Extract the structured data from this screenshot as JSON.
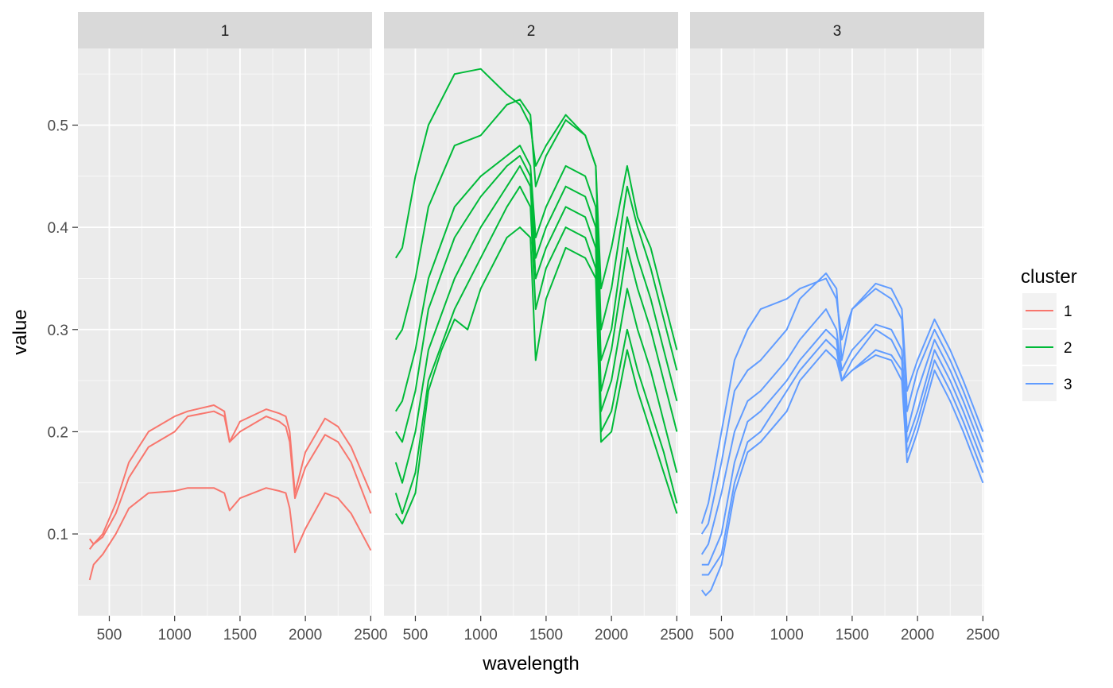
{
  "chart_data": {
    "type": "line",
    "facet_by": "cluster",
    "panels": [
      {
        "label": "1",
        "color": "#F8766D",
        "series": [
          {
            "x": [
              350,
              380,
              450,
              550,
              650,
              800,
              1000,
              1100,
              1300,
              1380,
              1420,
              1500,
              1700,
              1800,
              1850,
              1880,
              1920,
              2000,
              2150,
              2250,
              2350,
              2500
            ],
            "y": [
              0.085,
              0.09,
              0.1,
              0.13,
              0.17,
              0.2,
              0.215,
              0.22,
              0.226,
              0.22,
              0.19,
              0.21,
              0.222,
              0.218,
              0.215,
              0.2,
              0.14,
              0.18,
              0.213,
              0.205,
              0.185,
              0.14
            ]
          },
          {
            "x": [
              350,
              380,
              450,
              550,
              650,
              800,
              1000,
              1100,
              1300,
              1380,
              1420,
              1500,
              1700,
              1800,
              1850,
              1880,
              1920,
              2000,
              2150,
              2250,
              2350,
              2500
            ],
            "y": [
              0.095,
              0.09,
              0.097,
              0.12,
              0.155,
              0.185,
              0.2,
              0.215,
              0.22,
              0.215,
              0.19,
              0.2,
              0.215,
              0.21,
              0.205,
              0.19,
              0.135,
              0.165,
              0.197,
              0.19,
              0.17,
              0.12
            ]
          },
          {
            "x": [
              350,
              380,
              450,
              550,
              650,
              800,
              1000,
              1100,
              1300,
              1380,
              1420,
              1500,
              1700,
              1800,
              1850,
              1880,
              1920,
              2000,
              2150,
              2250,
              2350,
              2500
            ],
            "y": [
              0.055,
              0.07,
              0.08,
              0.1,
              0.125,
              0.14,
              0.142,
              0.145,
              0.145,
              0.14,
              0.123,
              0.135,
              0.145,
              0.142,
              0.14,
              0.125,
              0.082,
              0.105,
              0.14,
              0.135,
              0.12,
              0.084
            ]
          }
        ]
      },
      {
        "label": "2",
        "color": "#00BA38",
        "series": [
          {
            "x": [
              350,
              400,
              500,
              600,
              800,
              1000,
              1200,
              1300,
              1380,
              1420,
              1500,
              1650,
              1800,
              1880,
              1920,
              2000,
              2120,
              2200,
              2300,
              2400,
              2500
            ],
            "y": [
              0.37,
              0.38,
              0.45,
              0.5,
              0.55,
              0.555,
              0.53,
              0.52,
              0.5,
              0.46,
              0.48,
              0.51,
              0.49,
              0.46,
              0.34,
              0.38,
              0.46,
              0.41,
              0.38,
              0.33,
              0.28
            ]
          },
          {
            "x": [
              350,
              400,
              500,
              600,
              800,
              1000,
              1200,
              1300,
              1380,
              1420,
              1500,
              1650,
              1800,
              1880,
              1920,
              2000,
              2120,
              2200,
              2300,
              2400,
              2500
            ],
            "y": [
              0.29,
              0.3,
              0.35,
              0.42,
              0.48,
              0.49,
              0.52,
              0.525,
              0.51,
              0.44,
              0.47,
              0.505,
              0.49,
              0.46,
              0.3,
              0.34,
              0.44,
              0.4,
              0.36,
              0.31,
              0.26
            ]
          },
          {
            "x": [
              350,
              400,
              500,
              600,
              800,
              1000,
              1200,
              1300,
              1380,
              1420,
              1500,
              1650,
              1800,
              1880,
              1920,
              2000,
              2120,
              2200,
              2300,
              2400,
              2500
            ],
            "y": [
              0.22,
              0.23,
              0.28,
              0.35,
              0.42,
              0.45,
              0.47,
              0.48,
              0.46,
              0.39,
              0.42,
              0.46,
              0.45,
              0.42,
              0.27,
              0.3,
              0.41,
              0.37,
              0.33,
              0.28,
              0.23
            ]
          },
          {
            "x": [
              350,
              400,
              500,
              600,
              800,
              1000,
              1200,
              1300,
              1380,
              1420,
              1500,
              1650,
              1800,
              1880,
              1920,
              2000,
              2120,
              2200,
              2300,
              2400,
              2500
            ],
            "y": [
              0.2,
              0.19,
              0.24,
              0.32,
              0.39,
              0.43,
              0.46,
              0.47,
              0.45,
              0.37,
              0.4,
              0.44,
              0.43,
              0.4,
              0.24,
              0.28,
              0.38,
              0.34,
              0.3,
              0.25,
              0.2
            ]
          },
          {
            "x": [
              350,
              400,
              500,
              600,
              800,
              1000,
              1200,
              1300,
              1380,
              1420,
              1500,
              1650,
              1800,
              1880,
              1920,
              2000,
              2120,
              2200,
              2300,
              2400,
              2500
            ],
            "y": [
              0.17,
              0.15,
              0.2,
              0.28,
              0.35,
              0.4,
              0.44,
              0.46,
              0.44,
              0.35,
              0.38,
              0.42,
              0.41,
              0.38,
              0.22,
              0.25,
              0.34,
              0.3,
              0.26,
              0.21,
              0.16
            ]
          },
          {
            "x": [
              350,
              400,
              500,
              600,
              800,
              1000,
              1200,
              1300,
              1380,
              1420,
              1500,
              1650,
              1800,
              1880,
              1920,
              2000,
              2120,
              2200,
              2300,
              2400,
              2500
            ],
            "y": [
              0.14,
              0.12,
              0.16,
              0.25,
              0.32,
              0.37,
              0.42,
              0.44,
              0.42,
              0.32,
              0.36,
              0.4,
              0.39,
              0.36,
              0.2,
              0.22,
              0.3,
              0.26,
              0.22,
              0.18,
              0.13
            ]
          },
          {
            "x": [
              350,
              400,
              500,
              600,
              700,
              800,
              900,
              1000,
              1200,
              1300,
              1380,
              1420,
              1500,
              1650,
              1800,
              1880,
              1920,
              2000,
              2120,
              2200,
              2300,
              2400,
              2500
            ],
            "y": [
              0.12,
              0.11,
              0.14,
              0.24,
              0.28,
              0.31,
              0.3,
              0.34,
              0.39,
              0.4,
              0.39,
              0.27,
              0.33,
              0.38,
              0.37,
              0.35,
              0.19,
              0.2,
              0.28,
              0.24,
              0.2,
              0.16,
              0.12
            ]
          }
        ]
      },
      {
        "label": "3",
        "color": "#619CFF",
        "series": [
          {
            "x": [
              350,
              400,
              500,
              600,
              700,
              800,
              1000,
              1100,
              1300,
              1380,
              1420,
              1500,
              1680,
              1800,
              1880,
              1920,
              2000,
              2130,
              2250,
              2350,
              2500
            ],
            "y": [
              0.11,
              0.13,
              0.2,
              0.27,
              0.3,
              0.32,
              0.33,
              0.34,
              0.35,
              0.33,
              0.29,
              0.32,
              0.345,
              0.34,
              0.32,
              0.24,
              0.27,
              0.31,
              0.28,
              0.25,
              0.2
            ]
          },
          {
            "x": [
              350,
              400,
              500,
              600,
              700,
              800,
              1000,
              1100,
              1300,
              1380,
              1420,
              1500,
              1680,
              1800,
              1880,
              1920,
              2000,
              2130,
              2250,
              2350,
              2500
            ],
            "y": [
              0.1,
              0.11,
              0.17,
              0.24,
              0.26,
              0.27,
              0.3,
              0.33,
              0.355,
              0.34,
              0.27,
              0.32,
              0.34,
              0.33,
              0.31,
              0.22,
              0.26,
              0.3,
              0.27,
              0.24,
              0.19
            ]
          },
          {
            "x": [
              350,
              400,
              500,
              600,
              700,
              800,
              1000,
              1100,
              1300,
              1380,
              1420,
              1500,
              1680,
              1800,
              1880,
              1920,
              2000,
              2130,
              2250,
              2350,
              2500
            ],
            "y": [
              0.08,
              0.09,
              0.14,
              0.2,
              0.23,
              0.24,
              0.27,
              0.29,
              0.32,
              0.3,
              0.26,
              0.28,
              0.305,
              0.3,
              0.28,
              0.2,
              0.24,
              0.29,
              0.26,
              0.23,
              0.18
            ]
          },
          {
            "x": [
              350,
              400,
              500,
              600,
              700,
              800,
              1000,
              1100,
              1300,
              1380,
              1420,
              1500,
              1680,
              1800,
              1880,
              1920,
              2000,
              2130,
              2250,
              2350,
              2500
            ],
            "y": [
              0.07,
              0.07,
              0.1,
              0.17,
              0.21,
              0.22,
              0.25,
              0.27,
              0.3,
              0.29,
              0.25,
              0.27,
              0.3,
              0.29,
              0.27,
              0.19,
              0.22,
              0.28,
              0.25,
              0.22,
              0.17
            ]
          },
          {
            "x": [
              350,
              400,
              500,
              600,
              700,
              800,
              1000,
              1100,
              1300,
              1380,
              1420,
              1500,
              1680,
              1800,
              1880,
              1920,
              2000,
              2130,
              2250,
              2350,
              2500
            ],
            "y": [
              0.06,
              0.06,
              0.08,
              0.15,
              0.19,
              0.2,
              0.24,
              0.26,
              0.29,
              0.28,
              0.25,
              0.26,
              0.28,
              0.275,
              0.26,
              0.18,
              0.21,
              0.27,
              0.24,
              0.21,
              0.16
            ]
          },
          {
            "x": [
              350,
              380,
              420,
              500,
              600,
              700,
              800,
              1000,
              1100,
              1300,
              1380,
              1420,
              1500,
              1680,
              1800,
              1880,
              1920,
              2000,
              2130,
              2250,
              2350,
              2500
            ],
            "y": [
              0.045,
              0.04,
              0.045,
              0.07,
              0.14,
              0.18,
              0.19,
              0.22,
              0.25,
              0.28,
              0.27,
              0.25,
              0.26,
              0.275,
              0.27,
              0.25,
              0.17,
              0.2,
              0.26,
              0.23,
              0.2,
              0.15
            ]
          }
        ]
      }
    ],
    "x_ticks": [
      500,
      1000,
      1500,
      2000,
      2500
    ],
    "y_ticks": [
      0.1,
      0.2,
      0.3,
      0.4,
      0.5
    ],
    "x_tick_labels": [
      "500",
      "1000",
      "1500",
      "2000",
      "2500"
    ],
    "y_tick_labels": [
      "0.1",
      "0.2",
      "0.3",
      "0.4",
      "0.5"
    ],
    "xlim": [
      260,
      2510
    ],
    "ylim": [
      0.02,
      0.575
    ],
    "xlabel": "wavelength",
    "ylabel": "value",
    "legend": {
      "title": "cluster",
      "position": "right",
      "entries": [
        {
          "label": "1",
          "color": "#F8766D"
        },
        {
          "label": "2",
          "color": "#00BA38"
        },
        {
          "label": "3",
          "color": "#619CFF"
        }
      ]
    },
    "grid": true,
    "panel_background": "#EBEBEB",
    "strip_background": "#D9D9D9"
  }
}
